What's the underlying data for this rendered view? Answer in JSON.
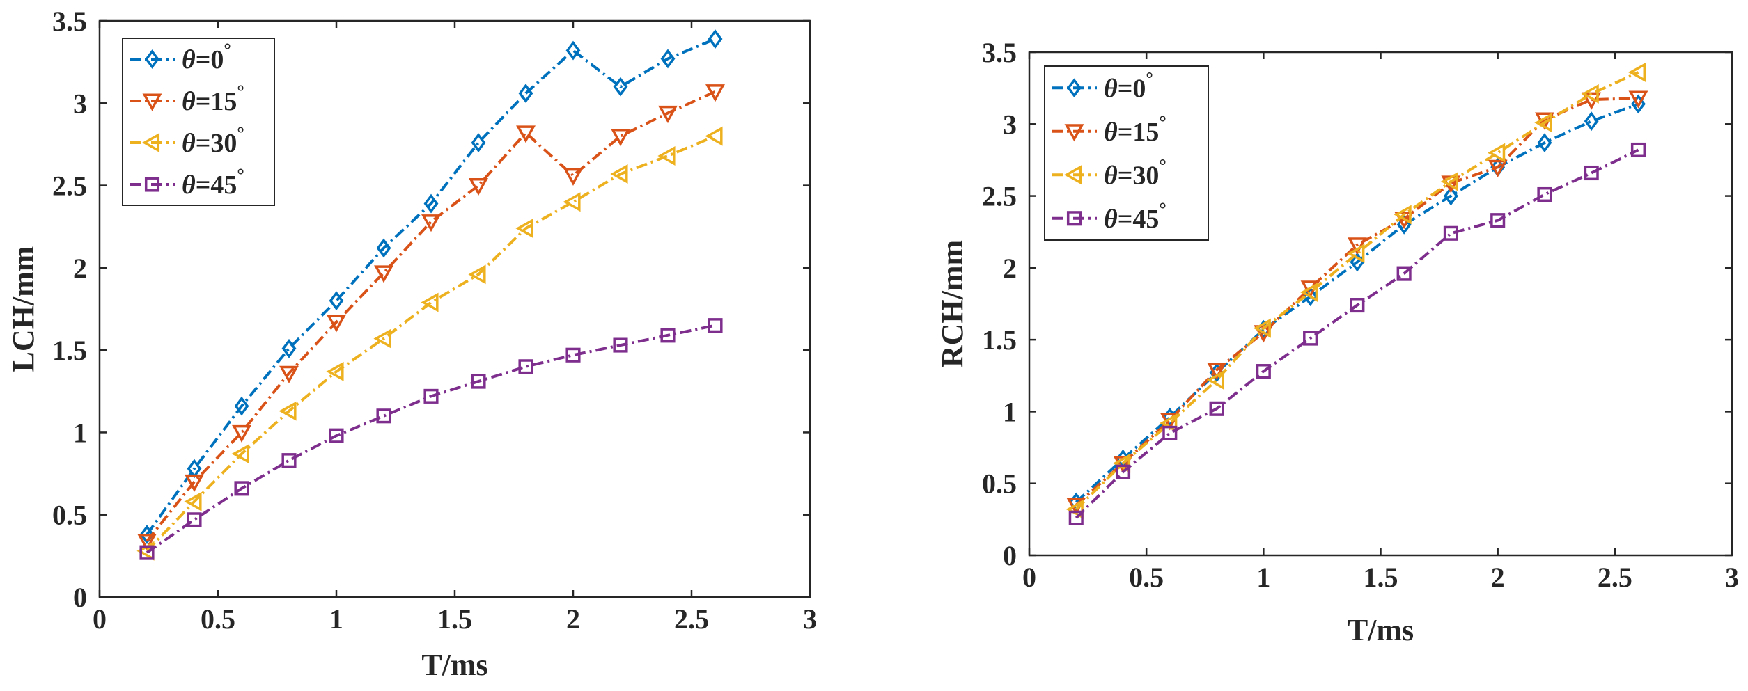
{
  "chart_data": [
    {
      "type": "line",
      "xlabel": "T/ms",
      "ylabel": "LCH/mm",
      "xlim": [
        0,
        3
      ],
      "ylim": [
        0,
        3.5
      ],
      "xticks": [
        "0",
        "0.5",
        "1",
        "1.5",
        "2",
        "2.5",
        "3"
      ],
      "yticks": [
        "0",
        "0.5",
        "1",
        "1.5",
        "2",
        "2.5",
        "3",
        "3.5"
      ],
      "legend_position": "top-left",
      "x": [
        0.2,
        0.4,
        0.6,
        0.8,
        1.0,
        1.2,
        1.4,
        1.6,
        1.8,
        2.0,
        2.2,
        2.4,
        2.6
      ],
      "series": [
        {
          "name": "θ=0°",
          "symbol": "θ",
          "value_text": "=0",
          "degree": "°",
          "color": "#0072BD",
          "marker": "diamond",
          "values": [
            0.38,
            0.78,
            1.16,
            1.51,
            1.8,
            2.12,
            2.39,
            2.76,
            3.06,
            3.32,
            3.1,
            3.27,
            3.39
          ]
        },
        {
          "name": "θ=15°",
          "symbol": "θ",
          "value_text": "=15",
          "degree": "°",
          "color": "#D95319",
          "marker": "triangle-down",
          "values": [
            0.34,
            0.7,
            1.0,
            1.36,
            1.67,
            1.97,
            2.28,
            2.5,
            2.82,
            2.56,
            2.8,
            2.94,
            3.07
          ]
        },
        {
          "name": "θ=30°",
          "symbol": "θ",
          "value_text": "=30",
          "degree": "°",
          "color": "#EDB120",
          "marker": "triangle-left",
          "values": [
            0.28,
            0.58,
            0.87,
            1.13,
            1.37,
            1.57,
            1.79,
            1.96,
            2.24,
            2.4,
            2.57,
            2.68,
            2.8
          ]
        },
        {
          "name": "θ=45°",
          "symbol": "θ",
          "value_text": "=45",
          "degree": "°",
          "color": "#7E2F8E",
          "marker": "square",
          "values": [
            0.27,
            0.47,
            0.66,
            0.83,
            0.98,
            1.1,
            1.22,
            1.31,
            1.4,
            1.47,
            1.53,
            1.59,
            1.65
          ]
        }
      ]
    },
    {
      "type": "line",
      "xlabel": "T/ms",
      "ylabel": "RCH/mm",
      "xlim": [
        0,
        3
      ],
      "ylim": [
        0,
        3.5
      ],
      "xticks": [
        "0",
        "0.5",
        "1",
        "1.5",
        "2",
        "2.5",
        "3"
      ],
      "yticks": [
        "0",
        "0.5",
        "1",
        "1.5",
        "2",
        "2.5",
        "3",
        "3.5"
      ],
      "legend_position": "top-left",
      "x": [
        0.2,
        0.4,
        0.6,
        0.8,
        1.0,
        1.2,
        1.4,
        1.6,
        1.8,
        2.0,
        2.2,
        2.4,
        2.6
      ],
      "series": [
        {
          "name": "θ=0°",
          "symbol": "θ",
          "value_text": "=0",
          "degree": "°",
          "color": "#0072BD",
          "marker": "diamond",
          "values": [
            0.37,
            0.67,
            0.96,
            1.27,
            1.57,
            1.8,
            2.04,
            2.3,
            2.5,
            2.7,
            2.87,
            3.02,
            3.14
          ]
        },
        {
          "name": "θ=15°",
          "symbol": "θ",
          "value_text": "=15",
          "degree": "°",
          "color": "#D95319",
          "marker": "triangle-down",
          "values": [
            0.35,
            0.64,
            0.94,
            1.29,
            1.55,
            1.86,
            2.16,
            2.34,
            2.59,
            2.7,
            3.03,
            3.17,
            3.18
          ]
        },
        {
          "name": "θ=30°",
          "symbol": "θ",
          "value_text": "=30",
          "degree": "°",
          "color": "#EDB120",
          "marker": "triangle-left",
          "values": [
            0.32,
            0.64,
            0.92,
            1.22,
            1.58,
            1.83,
            2.1,
            2.37,
            2.6,
            2.8,
            3.01,
            3.21,
            3.36
          ]
        },
        {
          "name": "θ=45°",
          "symbol": "θ",
          "value_text": "=45",
          "degree": "°",
          "color": "#7E2F8E",
          "marker": "square",
          "values": [
            0.26,
            0.58,
            0.85,
            1.02,
            1.28,
            1.51,
            1.74,
            1.96,
            2.24,
            2.33,
            2.51,
            2.66,
            2.82
          ]
        }
      ]
    }
  ]
}
